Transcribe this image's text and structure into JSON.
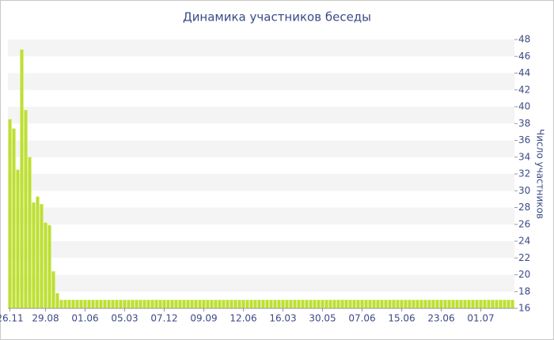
{
  "chart_data": {
    "type": "bar",
    "title": "Динамика участников беседы",
    "y_label": "Число участников",
    "color": "#bddf35",
    "ylim": [
      16,
      48
    ],
    "yticks": [
      16,
      18,
      20,
      22,
      24,
      26,
      28,
      30,
      32,
      34,
      36,
      38,
      40,
      42,
      44,
      46,
      48
    ],
    "grid": true,
    "categories": [
      "26.11",
      null,
      null,
      null,
      null,
      null,
      null,
      null,
      null,
      "29.08",
      null,
      null,
      null,
      null,
      null,
      null,
      null,
      null,
      null,
      "01.06",
      null,
      null,
      null,
      null,
      null,
      null,
      null,
      null,
      null,
      "05.03",
      null,
      null,
      null,
      null,
      null,
      null,
      null,
      null,
      null,
      "07.12",
      null,
      null,
      null,
      null,
      null,
      null,
      null,
      null,
      null,
      "09.09",
      null,
      null,
      null,
      null,
      null,
      null,
      null,
      null,
      null,
      "12.06",
      null,
      null,
      null,
      null,
      null,
      null,
      null,
      null,
      null,
      "16.03",
      null,
      null,
      null,
      null,
      null,
      null,
      null,
      null,
      null,
      "30.05",
      null,
      null,
      null,
      null,
      null,
      null,
      null,
      null,
      null,
      "07.06",
      null,
      null,
      null,
      null,
      null,
      null,
      null,
      null,
      null,
      "15.06",
      null,
      null,
      null,
      null,
      null,
      null,
      null,
      null,
      null,
      "23.06",
      null,
      null,
      null,
      null,
      null,
      null,
      null,
      null,
      null,
      "01.07",
      null,
      null,
      null,
      null,
      null,
      null,
      null,
      null
    ],
    "values": [
      38.5,
      37.4,
      32.5,
      46.8,
      39.6,
      34,
      28.6,
      29.3,
      28.4,
      26.2,
      25.9,
      20.4,
      17.8,
      17,
      17,
      17,
      17,
      17,
      17,
      17,
      17,
      17,
      17,
      17,
      17,
      17,
      17,
      17,
      17,
      17,
      17,
      17,
      17,
      17,
      17,
      17,
      17,
      17,
      17,
      17,
      17,
      17,
      17,
      17,
      17,
      17,
      17,
      17,
      17,
      17,
      17,
      17,
      17,
      17,
      17,
      17,
      17,
      17,
      17,
      17,
      17,
      17,
      17,
      17,
      17,
      17,
      17,
      17,
      17,
      17,
      17,
      17,
      17,
      17,
      17,
      17,
      17,
      17,
      17,
      17,
      17,
      17,
      17,
      17,
      17,
      17,
      17,
      17,
      17,
      17,
      17,
      17,
      17,
      17,
      17,
      17,
      17,
      17,
      17,
      17,
      17,
      17,
      17,
      17,
      17,
      17,
      17,
      17,
      17,
      17,
      17,
      17,
      17,
      17,
      17,
      17,
      17,
      17,
      17,
      17,
      17,
      17,
      17,
      17,
      17,
      17,
      17,
      17
    ]
  }
}
